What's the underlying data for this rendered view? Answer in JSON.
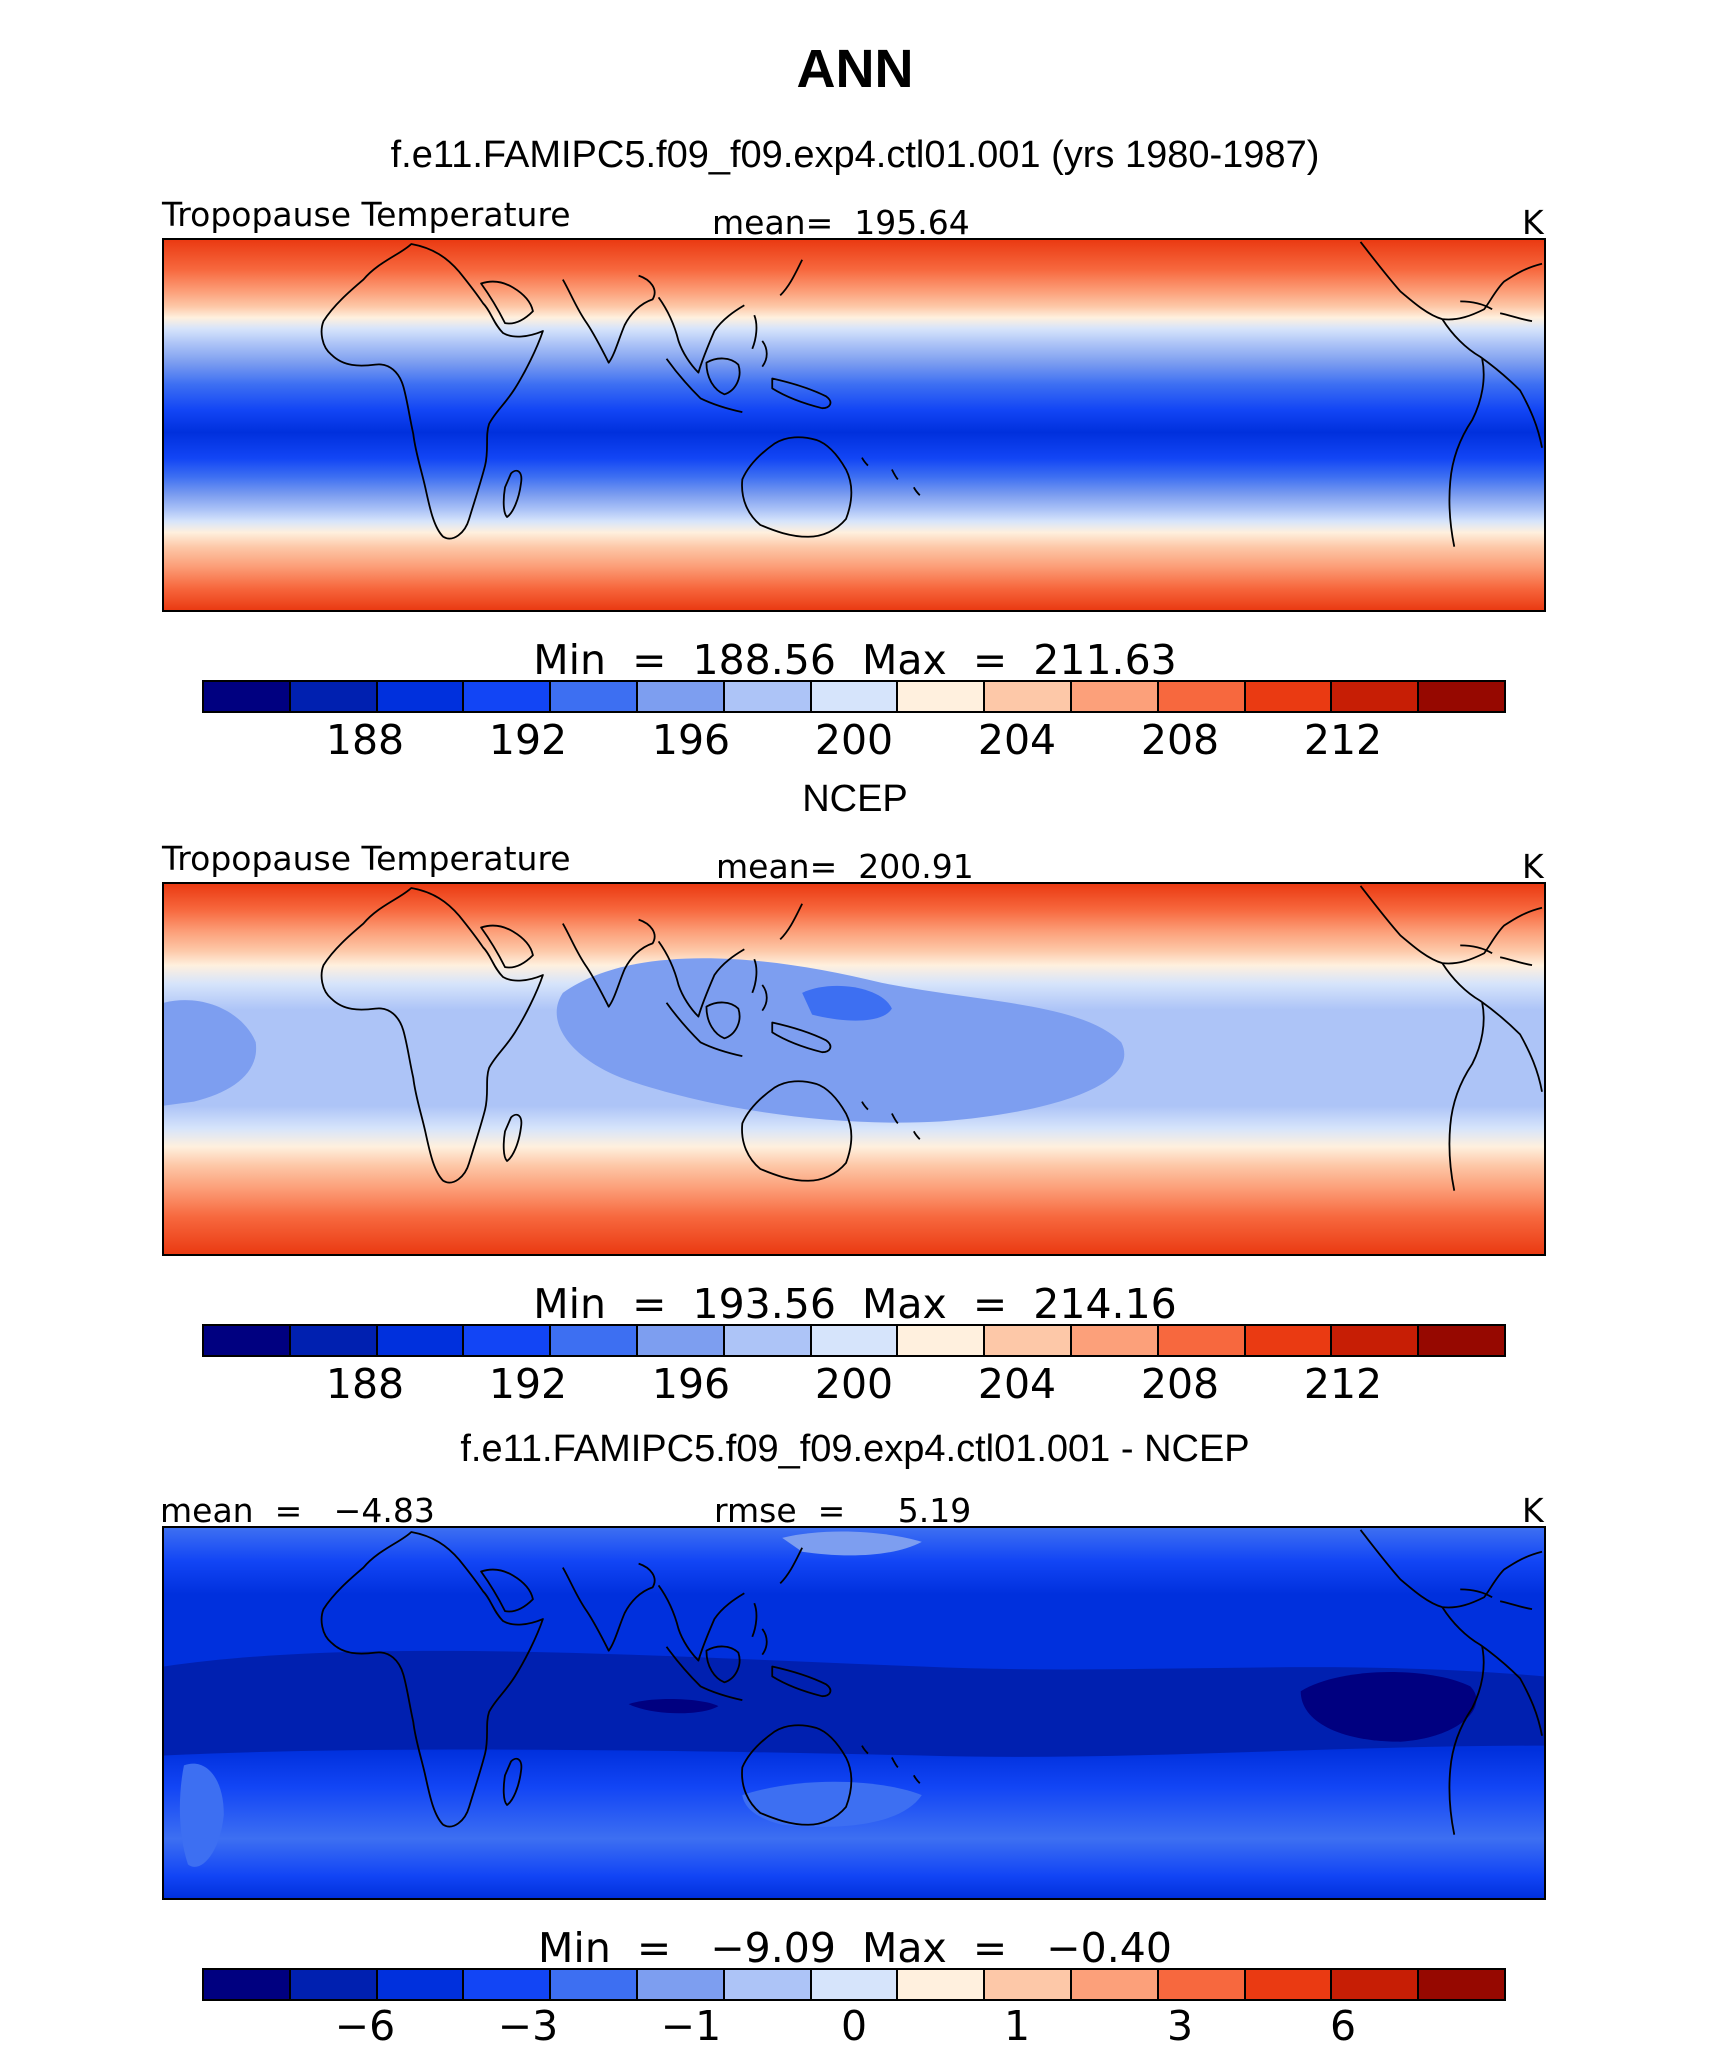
{
  "title": "ANN",
  "colors": {
    "palette": [
      "#000080",
      "#0020b0",
      "#0030dd",
      "#1245f5",
      "#3d6ff2",
      "#7d9ef0",
      "#adc4f7",
      "#d6e4fb",
      "#fff0de",
      "#fdc8a8",
      "#fca07a",
      "#f7683e",
      "#ea3a12",
      "#c71e05",
      "#960800"
    ],
    "coastline": "#000000"
  },
  "panels": [
    {
      "id": "model",
      "heading": "f.e11.FAMIPC5.f09_f09.exp4.ctl01.001 (yrs 1980-1987)",
      "left_label": "Tropopause Temperature",
      "center_label": "mean=  195.64",
      "right_label": "K",
      "minmax": "Min  =  188.56  Max  =  211.63",
      "ticks": [
        "188",
        "192",
        "196",
        "200",
        "204",
        "208",
        "212"
      ]
    },
    {
      "id": "obs",
      "heading": "NCEP",
      "left_label": "Tropopause Temperature",
      "center_label": "mean=  200.91",
      "right_label": "K",
      "minmax": "Min  =  193.56  Max  =  214.16",
      "ticks": [
        "188",
        "192",
        "196",
        "200",
        "204",
        "208",
        "212"
      ]
    },
    {
      "id": "diff",
      "heading": "f.e11.FAMIPC5.f09_f09.exp4.ctl01.001 - NCEP",
      "left_label": "mean  =   −4.83",
      "center_label": "rmse  =     5.19",
      "right_label": "K",
      "minmax": "Min  =   −9.09  Max  =   −0.40",
      "ticks": [
        "−6",
        "−3",
        "−1",
        "0",
        "1",
        "3",
        "6"
      ]
    }
  ]
}
